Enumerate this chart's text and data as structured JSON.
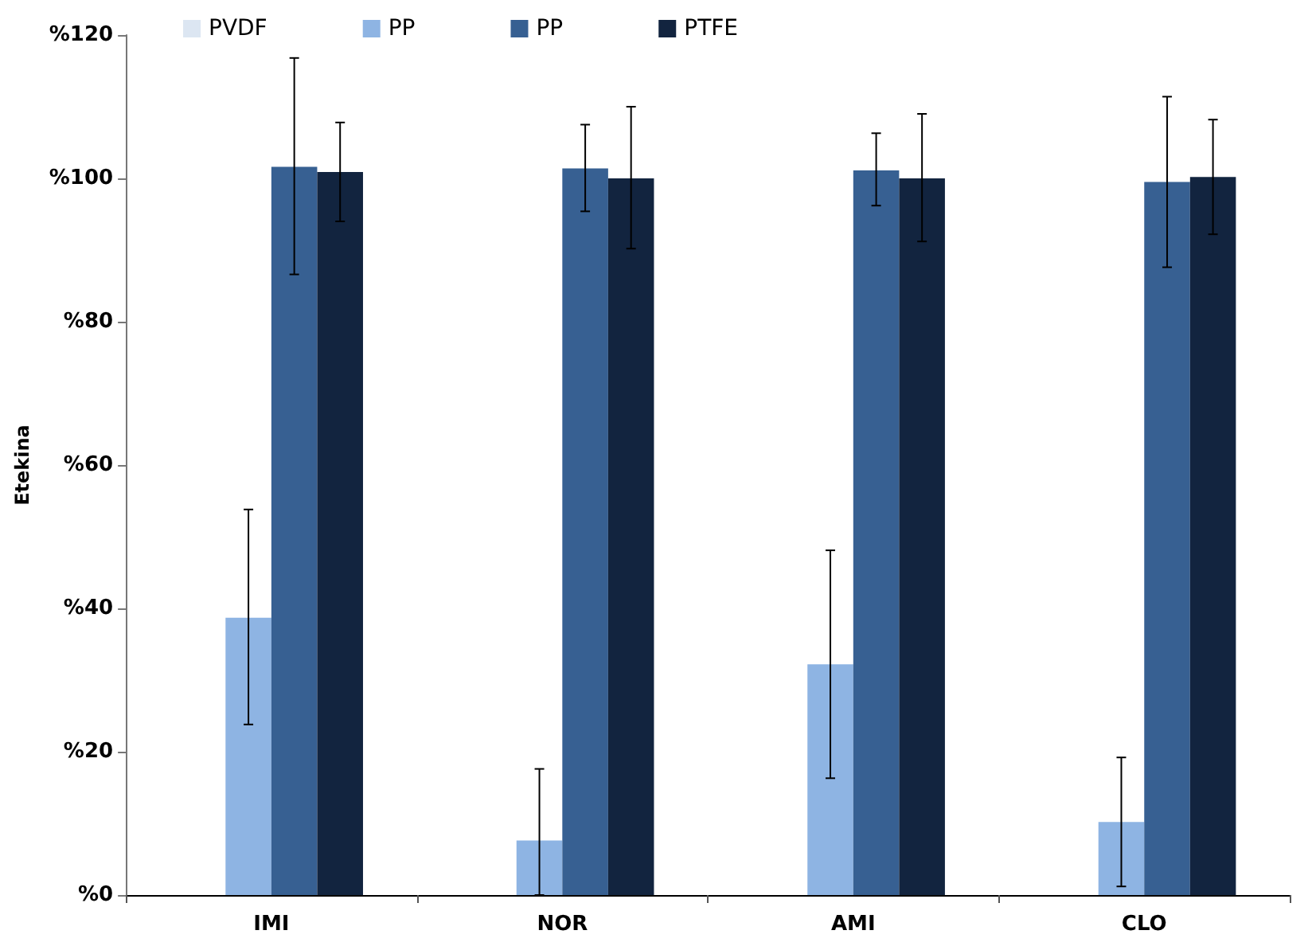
{
  "chart_data": {
    "type": "bar",
    "ylabel": "Etekina",
    "categories": [
      "IMI",
      "NOR",
      "AMI",
      "CLO"
    ],
    "series": [
      {
        "name": "PVDF",
        "color": "#dce6f2",
        "values": [
          0,
          0,
          0,
          0
        ]
      },
      {
        "name": "PP",
        "color": "#8eb4e3",
        "values": [
          38.7,
          7.6,
          32.2,
          10.2
        ],
        "errors": [
          [
            23.8,
            53.8
          ],
          [
            0,
            17.6
          ],
          [
            16.3,
            48.1
          ],
          [
            1.2,
            19.2
          ]
        ]
      },
      {
        "name": "PP",
        "color": "#376092",
        "values": [
          101.6,
          101.4,
          101.1,
          99.5
        ],
        "errors": [
          [
            86.6,
            116.8
          ],
          [
            95.4,
            107.5
          ],
          [
            96.2,
            106.3
          ],
          [
            87.6,
            111.4
          ]
        ]
      },
      {
        "name": "PTFE",
        "color": "#12243f",
        "values": [
          100.9,
          100,
          100,
          100.2
        ],
        "errors": [
          [
            94,
            107.8
          ],
          [
            90.2,
            110
          ],
          [
            91.2,
            109
          ],
          [
            92.2,
            108.2
          ]
        ]
      }
    ],
    "ylim": [
      0,
      120
    ],
    "yticks": [
      {
        "value": 0,
        "label": "%0"
      },
      {
        "value": 20,
        "label": "%20"
      },
      {
        "value": 40,
        "label": "%40"
      },
      {
        "value": 60,
        "label": "%60"
      },
      {
        "value": 80,
        "label": "%80"
      },
      {
        "value": 100,
        "label": "%100"
      },
      {
        "value": 120,
        "label": "%120"
      }
    ],
    "grid": false,
    "legend": "top"
  }
}
